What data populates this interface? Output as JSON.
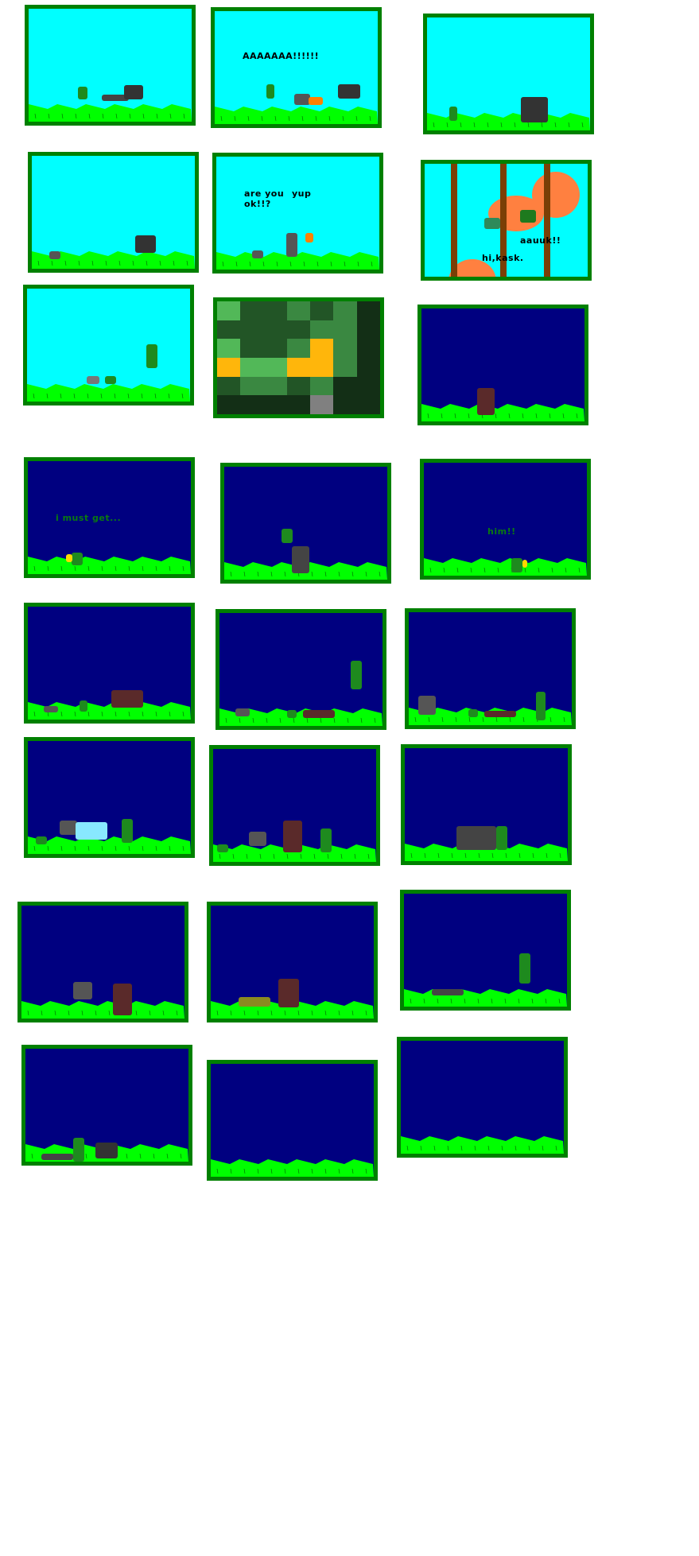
{
  "colors": {
    "frame": "#008000",
    "day_sky": "#00ffff",
    "night_sky": "#000080",
    "grass": "#00ff00",
    "tree_trunk": "#7a3f06",
    "tree_canopy": "#ff8040"
  },
  "panels": [
    {
      "scene": "day",
      "captions": []
    },
    {
      "scene": "day",
      "captions": [
        "AAAAAAA!!!!!!"
      ]
    },
    {
      "scene": "day",
      "captions": []
    },
    {
      "scene": "day",
      "captions": []
    },
    {
      "scene": "day",
      "captions": [
        "are you\nok!!?",
        "yup"
      ]
    },
    {
      "scene": "forest",
      "captions": [
        "aauuk!!",
        "hi,kask."
      ]
    },
    {
      "scene": "day",
      "captions": []
    },
    {
      "scene": "mosaic",
      "captions": [],
      "mosaic_grid": [
        [
          "L",
          "D",
          "D",
          "M",
          "D",
          "M",
          "X"
        ],
        [
          "D",
          "D",
          "D",
          "D",
          "M",
          "M",
          "X"
        ],
        [
          "L",
          "D",
          "D",
          "M",
          "O",
          "M",
          "X"
        ],
        [
          "O",
          "L",
          "L",
          "O",
          "O",
          "M",
          "X"
        ],
        [
          "D",
          "M",
          "M",
          "D",
          "M",
          "X",
          "X"
        ],
        [
          "X",
          "X",
          "X",
          "X",
          "G",
          "X",
          "X"
        ]
      ],
      "mosaic_colors": {
        "L": "#52b858",
        "M": "#3a8841",
        "D": "#225526",
        "X": "#132f16",
        "O": "#ffb60b",
        "G": "#808080"
      }
    },
    {
      "scene": "night",
      "captions": []
    },
    {
      "scene": "night",
      "captions": [
        "i must get..."
      ]
    },
    {
      "scene": "night",
      "captions": []
    },
    {
      "scene": "night",
      "captions": [
        "him!!"
      ]
    },
    {
      "scene": "night",
      "captions": []
    },
    {
      "scene": "night",
      "captions": []
    },
    {
      "scene": "night",
      "captions": []
    },
    {
      "scene": "night",
      "captions": []
    },
    {
      "scene": "night",
      "captions": []
    },
    {
      "scene": "night",
      "captions": []
    },
    {
      "scene": "night",
      "captions": []
    },
    {
      "scene": "night",
      "captions": []
    },
    {
      "scene": "night",
      "captions": []
    },
    {
      "scene": "night",
      "captions": []
    },
    {
      "scene": "night",
      "captions": []
    },
    {
      "scene": "night",
      "captions": []
    }
  ]
}
